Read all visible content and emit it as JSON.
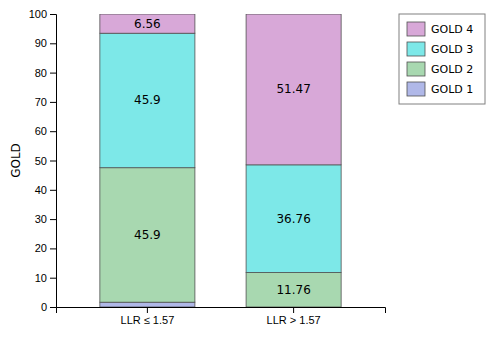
{
  "chart_data": {
    "type": "bar",
    "stacked": true,
    "data_labels": true,
    "grid": false,
    "legend": "right",
    "ylabel": "GOLD",
    "categories": [
      "LLR ≤ 1.57",
      "LLR > 1.57"
    ],
    "series": [
      {
        "name": "GOLD 1",
        "color": "#b0b8e8",
        "values": [
          1.64,
          0.0
        ],
        "data_labels": false
      },
      {
        "name": "GOLD 2",
        "color": "#a8d8b0",
        "values": [
          45.9,
          11.76
        ]
      },
      {
        "name": "GOLD 3",
        "color": "#7de8e8",
        "values": [
          45.9,
          36.76
        ]
      },
      {
        "name": "GOLD 4",
        "color": "#d8a8d8",
        "values": [
          6.56,
          51.47
        ]
      }
    ],
    "ylim": [
      0,
      100
    ],
    "yticks": [
      0,
      10,
      20,
      30,
      40,
      50,
      60,
      70,
      80,
      90,
      100
    ]
  }
}
